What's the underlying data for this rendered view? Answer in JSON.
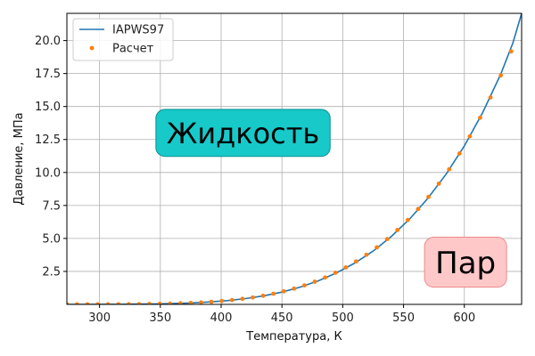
{
  "chart_data": {
    "type": "line",
    "xlabel": "Температура, К",
    "ylabel": "Давление, МПа",
    "xlim": [
      273.15,
      647.1
    ],
    "ylim": [
      0,
      22.064
    ],
    "xticks": [
      "300",
      "350",
      "400",
      "450",
      "500",
      "550",
      "600"
    ],
    "yticks": [
      "2.5",
      "5.0",
      "7.5",
      "10.0",
      "12.5",
      "15.0",
      "17.5",
      "20.0"
    ],
    "grid": true,
    "legend_position": "top-left",
    "series": [
      {
        "name": "IAPWS97",
        "style": "line",
        "color": "#1f77b4",
        "x": [
          273.15,
          285,
          300,
          315,
          330,
          345,
          360,
          375,
          390,
          405,
          420,
          435,
          450,
          465,
          480,
          495,
          510,
          525,
          540,
          555,
          570,
          585,
          600,
          615,
          630,
          640,
          647.1
        ],
        "y": [
          0.00061,
          0.0014,
          0.0035,
          0.0081,
          0.0172,
          0.0337,
          0.0622,
          0.1083,
          0.1794,
          0.2847,
          0.437,
          0.6485,
          0.932,
          1.309,
          1.791,
          2.393,
          3.136,
          4.044,
          5.153,
          6.474,
          8.034,
          9.871,
          12.02,
          14.53,
          17.47,
          19.84,
          22.064
        ]
      },
      {
        "name": "Расчет",
        "style": "scatter",
        "color": "#ff7f0e",
        "x": [
          273.15,
          281.5,
          290.0,
          298.5,
          307.0,
          315.5,
          324.0,
          332.5,
          341.0,
          349.5,
          358.0,
          366.5,
          375.0,
          383.5,
          392.0,
          400.5,
          409.0,
          417.5,
          426.0,
          434.5,
          443.0,
          451.5,
          460.0,
          468.5,
          477.0,
          485.5,
          494.0,
          502.5,
          511.0,
          519.5,
          528.0,
          536.5,
          545.0,
          553.5,
          562.0,
          570.5,
          579.0,
          587.5,
          596.0,
          604.5,
          613.0,
          621.5,
          630.0,
          638.5
        ],
        "y": [
          0.00061,
          0.0011,
          0.0019,
          0.0032,
          0.0052,
          0.0083,
          0.0128,
          0.0193,
          0.0285,
          0.0411,
          0.0582,
          0.0807,
          0.1101,
          0.1477,
          0.1953,
          0.2546,
          0.3278,
          0.4171,
          0.5251,
          0.6543,
          0.8076,
          0.9879,
          1.198,
          1.441,
          1.72,
          2.037,
          2.397,
          2.802,
          3.256,
          3.763,
          4.326,
          4.95,
          5.639,
          6.398,
          7.232,
          8.147,
          9.149,
          10.24,
          11.44,
          12.74,
          14.15,
          15.69,
          17.36,
          19.18
        ]
      }
    ],
    "annotations": [
      {
        "text": "Жидкость",
        "x": 418,
        "y": 13.0,
        "face": "#17c9c9",
        "edge": "#0f8f8f"
      },
      {
        "text": "Пар",
        "x": 601,
        "y": 3.2,
        "face": "#ffc8c8",
        "edge": "#ee8888"
      }
    ]
  }
}
